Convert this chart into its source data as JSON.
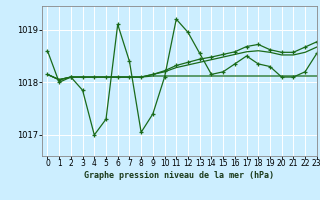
{
  "title": "Graphe pression niveau de la mer (hPa)",
  "bg_color": "#cceeff",
  "grid_color": "#ffffff",
  "line_color": "#1a6b1a",
  "marker": "+",
  "xlim": [
    -0.5,
    23
  ],
  "ylim": [
    1016.6,
    1019.45
  ],
  "yticks": [
    1017,
    1018,
    1019
  ],
  "xticks": [
    0,
    1,
    2,
    3,
    4,
    5,
    6,
    7,
    8,
    9,
    10,
    11,
    12,
    13,
    14,
    15,
    16,
    17,
    18,
    19,
    20,
    21,
    22,
    23
  ],
  "series": [
    [
      1018.6,
      1018.0,
      1018.1,
      1017.85,
      1017.0,
      1017.3,
      1019.1,
      1018.4,
      1017.05,
      1017.4,
      1018.1,
      1019.2,
      1018.95,
      1018.55,
      1018.15,
      1018.2,
      1018.35,
      1018.5,
      1018.35,
      1018.3,
      1018.1,
      1018.1,
      1018.2,
      1018.55
    ],
    [
      1018.15,
      1018.05,
      1018.1,
      1018.1,
      1018.1,
      1018.1,
      1018.1,
      1018.1,
      1018.1,
      1018.12,
      1018.12,
      1018.12,
      1018.12,
      1018.12,
      1018.12,
      1018.12,
      1018.12,
      1018.12,
      1018.12,
      1018.12,
      1018.12,
      1018.12,
      1018.12,
      1018.12
    ],
    [
      1018.15,
      1018.05,
      1018.1,
      1018.1,
      1018.1,
      1018.1,
      1018.1,
      1018.1,
      1018.1,
      1018.15,
      1018.2,
      1018.28,
      1018.33,
      1018.38,
      1018.43,
      1018.48,
      1018.53,
      1018.58,
      1018.6,
      1018.57,
      1018.52,
      1018.52,
      1018.57,
      1018.67
    ],
    [
      1018.15,
      1018.05,
      1018.1,
      1018.1,
      1018.1,
      1018.1,
      1018.1,
      1018.1,
      1018.1,
      1018.15,
      1018.22,
      1018.32,
      1018.38,
      1018.44,
      1018.48,
      1018.53,
      1018.58,
      1018.68,
      1018.72,
      1018.62,
      1018.57,
      1018.57,
      1018.67,
      1018.77
    ]
  ],
  "series_styles": [
    {
      "lw": 0.9,
      "ms": 3.5,
      "has_marker": true
    },
    {
      "lw": 0.9,
      "ms": 0,
      "has_marker": false
    },
    {
      "lw": 0.9,
      "ms": 0,
      "has_marker": false
    },
    {
      "lw": 0.9,
      "ms": 3.0,
      "has_marker": true
    }
  ],
  "tick_fontsize": 5.5,
  "xlabel_fontsize": 6.0,
  "spine_color": "#888888"
}
